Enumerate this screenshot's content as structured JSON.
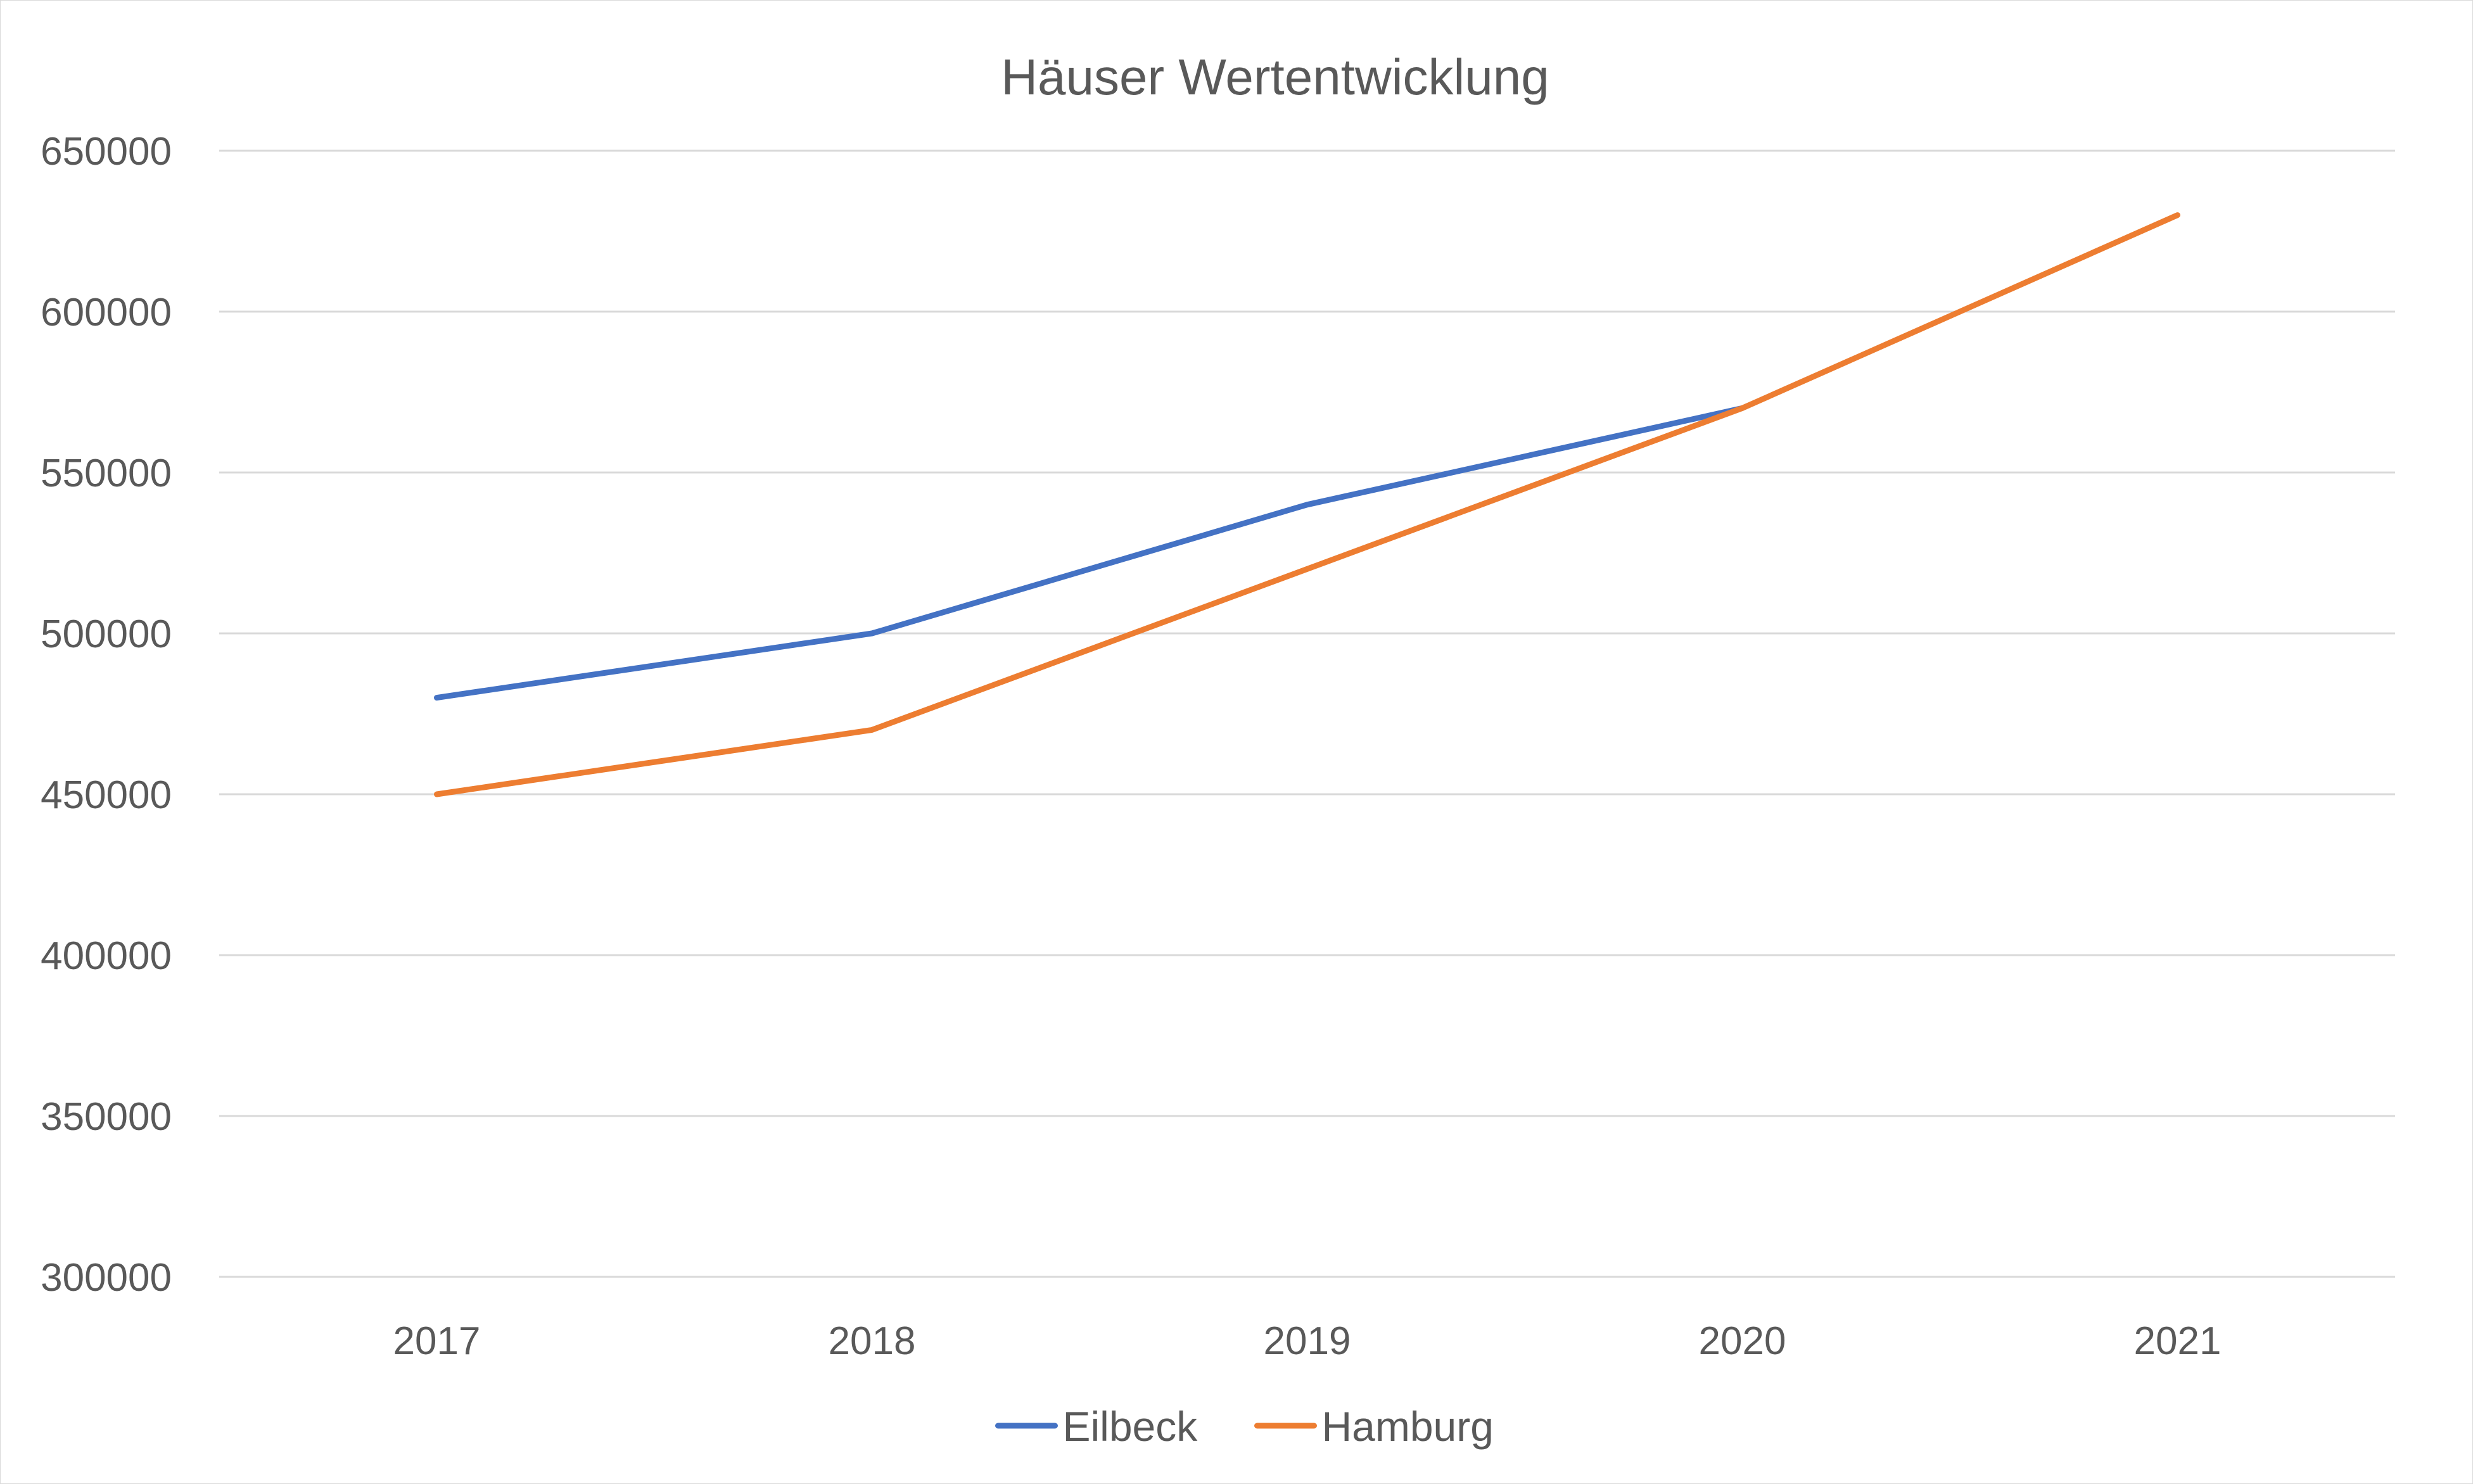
{
  "chart_data": {
    "type": "line",
    "title": "Häuser Wertentwicklung",
    "xlabel": "",
    "ylabel": "",
    "categories": [
      "2017",
      "2018",
      "2019",
      "2020",
      "2021"
    ],
    "ylim": [
      300000,
      650000
    ],
    "yticks": [
      "300000",
      "350000",
      "400000",
      "450000",
      "500000",
      "550000",
      "600000",
      "650000"
    ],
    "grid": true,
    "legend_position": "bottom",
    "series": [
      {
        "name": "Eilbeck",
        "color": "#4472c4",
        "values": [
          480000,
          500000,
          540000,
          570000,
          null
        ]
      },
      {
        "name": "Hamburg",
        "color": "#ed7d31",
        "values": [
          450000,
          470000,
          520000,
          570000,
          630000
        ]
      }
    ]
  }
}
